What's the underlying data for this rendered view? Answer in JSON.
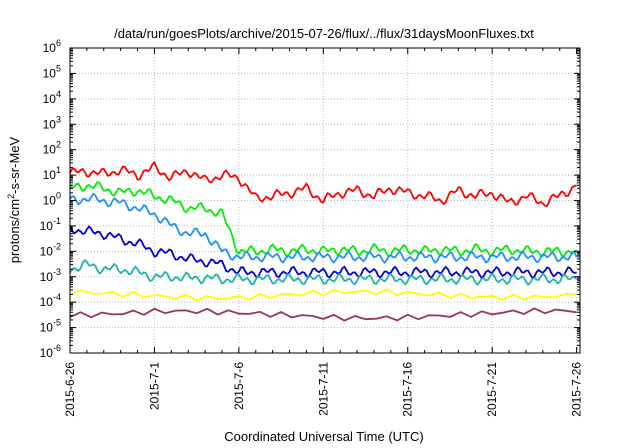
{
  "chart_data": {
    "type": "line",
    "title": "/data/run/goesPlots/archive/2015-07-26/flux/../flux/31daysMoonFluxes.txt",
    "xlabel": "Coordinated Universal Time (UTC)",
    "ylabel": {
      "main": "protons/cm",
      "sup": "2",
      "rest": "-s-sr-MeV"
    },
    "yscale": "log",
    "ylim_exp": [
      -6,
      6
    ],
    "y_ticks": [
      {
        "base": "10",
        "exp": "-6"
      },
      {
        "base": "10",
        "exp": "-5"
      },
      {
        "base": "10",
        "exp": "-4"
      },
      {
        "base": "10",
        "exp": "-3"
      },
      {
        "base": "10",
        "exp": "-2"
      },
      {
        "base": "10",
        "exp": "-1"
      },
      {
        "base": "10",
        "exp": "0"
      },
      {
        "base": "10",
        "exp": "1"
      },
      {
        "base": "10",
        "exp": "2"
      },
      {
        "base": "10",
        "exp": "3"
      },
      {
        "base": "10",
        "exp": "4"
      },
      {
        "base": "10",
        "exp": "5"
      },
      {
        "base": "10",
        "exp": "6"
      }
    ],
    "x_range_days": [
      0,
      30.2
    ],
    "x_ticks": [
      {
        "label": "2015-6-26",
        "day": 0
      },
      {
        "label": "2015-7-1",
        "day": 5
      },
      {
        "label": "2015-7-6",
        "day": 10
      },
      {
        "label": "2015-7-11",
        "day": 15
      },
      {
        "label": "2015-7-16",
        "day": 20
      },
      {
        "label": "2015-7-21",
        "day": 25
      },
      {
        "label": "2015-7-26",
        "day": 30
      }
    ],
    "grid": true,
    "series": [
      {
        "color": "#ff0000",
        "points": [
          [
            0,
            12
          ],
          [
            1,
            14
          ],
          [
            2,
            11
          ],
          [
            3,
            16
          ],
          [
            4,
            10
          ],
          [
            5,
            20
          ],
          [
            6,
            8
          ],
          [
            7,
            15
          ],
          [
            8,
            6
          ],
          [
            9,
            10
          ],
          [
            10,
            8
          ],
          [
            11,
            1.2
          ],
          [
            12,
            1.5
          ],
          [
            13,
            2.0
          ],
          [
            14,
            3.0
          ],
          [
            15,
            1.0
          ],
          [
            16,
            2.0
          ],
          [
            17,
            2.5
          ],
          [
            18,
            1.5
          ],
          [
            19,
            3.0
          ],
          [
            20,
            2.0
          ],
          [
            21,
            1.5
          ],
          [
            22,
            1.0
          ],
          [
            23,
            2.5
          ],
          [
            24,
            1.5
          ],
          [
            25,
            2.0
          ],
          [
            26,
            0.8
          ],
          [
            27,
            1.5
          ],
          [
            28,
            0.8
          ],
          [
            29,
            1.5
          ],
          [
            30,
            4.0
          ]
        ]
      },
      {
        "color": "#00ee00",
        "points": [
          [
            0,
            3.0
          ],
          [
            1,
            4.0
          ],
          [
            2,
            3.0
          ],
          [
            3,
            2.0
          ],
          [
            4,
            2.5
          ],
          [
            5,
            1.5
          ],
          [
            6,
            1.0
          ],
          [
            7,
            0.5
          ],
          [
            8,
            0.5
          ],
          [
            9,
            0.3
          ],
          [
            10,
            0.01
          ],
          [
            11,
            0.01
          ],
          [
            12,
            0.012
          ],
          [
            13,
            0.01
          ],
          [
            14,
            0.012
          ],
          [
            15,
            0.01
          ],
          [
            16,
            0.012
          ],
          [
            17,
            0.01
          ],
          [
            18,
            0.012
          ],
          [
            19,
            0.01
          ],
          [
            20,
            0.012
          ],
          [
            21,
            0.01
          ],
          [
            22,
            0.012
          ],
          [
            23,
            0.01
          ],
          [
            24,
            0.012
          ],
          [
            25,
            0.01
          ],
          [
            26,
            0.012
          ],
          [
            27,
            0.01
          ],
          [
            28,
            0.01
          ],
          [
            29,
            0.01
          ],
          [
            30,
            0.01
          ]
        ]
      },
      {
        "color": "#1e90ff",
        "points": [
          [
            0,
            1.0
          ],
          [
            1,
            1.2
          ],
          [
            2,
            1.0
          ],
          [
            3,
            0.8
          ],
          [
            4,
            0.5
          ],
          [
            5,
            0.3
          ],
          [
            6,
            0.1
          ],
          [
            7,
            0.05
          ],
          [
            8,
            0.05
          ],
          [
            9,
            0.01
          ],
          [
            10,
            0.006
          ],
          [
            11,
            0.006
          ],
          [
            12,
            0.006
          ],
          [
            13,
            0.006
          ],
          [
            14,
            0.006
          ],
          [
            15,
            0.006
          ],
          [
            16,
            0.006
          ],
          [
            17,
            0.006
          ],
          [
            18,
            0.006
          ],
          [
            19,
            0.006
          ],
          [
            20,
            0.006
          ],
          [
            21,
            0.006
          ],
          [
            22,
            0.006
          ],
          [
            23,
            0.006
          ],
          [
            24,
            0.006
          ],
          [
            25,
            0.006
          ],
          [
            26,
            0.006
          ],
          [
            27,
            0.006
          ],
          [
            28,
            0.006
          ],
          [
            29,
            0.006
          ],
          [
            30,
            0.006
          ]
        ]
      },
      {
        "color": "#0000dd",
        "points": [
          [
            0,
            0.08
          ],
          [
            1,
            0.06
          ],
          [
            2,
            0.05
          ],
          [
            3,
            0.03
          ],
          [
            4,
            0.02
          ],
          [
            5,
            0.01
          ],
          [
            6,
            0.008
          ],
          [
            7,
            0.005
          ],
          [
            8,
            0.004
          ],
          [
            9,
            0.003
          ],
          [
            10,
            0.0015
          ],
          [
            11,
            0.0015
          ],
          [
            12,
            0.0015
          ],
          [
            13,
            0.0015
          ],
          [
            14,
            0.0015
          ],
          [
            15,
            0.0015
          ],
          [
            16,
            0.0015
          ],
          [
            17,
            0.0015
          ],
          [
            18,
            0.0015
          ],
          [
            19,
            0.0015
          ],
          [
            20,
            0.0015
          ],
          [
            21,
            0.0015
          ],
          [
            22,
            0.0015
          ],
          [
            23,
            0.0015
          ],
          [
            24,
            0.0015
          ],
          [
            25,
            0.0015
          ],
          [
            26,
            0.0015
          ],
          [
            27,
            0.0015
          ],
          [
            28,
            0.0015
          ],
          [
            29,
            0.0015
          ],
          [
            30,
            0.0015
          ]
        ]
      },
      {
        "color": "#20b2aa",
        "points": [
          [
            0,
            0.002
          ],
          [
            1,
            0.003
          ],
          [
            2,
            0.002
          ],
          [
            3,
            0.002
          ],
          [
            4,
            0.0015
          ],
          [
            5,
            0.001
          ],
          [
            6,
            0.001
          ],
          [
            7,
            0.0009
          ],
          [
            8,
            0.0009
          ],
          [
            9,
            0.0008
          ],
          [
            10,
            0.0008
          ],
          [
            11,
            0.0008
          ],
          [
            12,
            0.0008
          ],
          [
            13,
            0.0008
          ],
          [
            14,
            0.0008
          ],
          [
            15,
            0.0008
          ],
          [
            16,
            0.0008
          ],
          [
            17,
            0.0008
          ],
          [
            18,
            0.0008
          ],
          [
            19,
            0.0008
          ],
          [
            20,
            0.0008
          ],
          [
            21,
            0.0008
          ],
          [
            22,
            0.0008
          ],
          [
            23,
            0.0008
          ],
          [
            24,
            0.0008
          ],
          [
            25,
            0.0008
          ],
          [
            26,
            0.0008
          ],
          [
            27,
            0.0008
          ],
          [
            28,
            0.0008
          ],
          [
            29,
            0.0008
          ],
          [
            30,
            0.0008
          ]
        ]
      },
      {
        "color": "#ffff00",
        "points": [
          [
            0,
            0.0002
          ],
          [
            5,
            0.0002
          ],
          [
            10,
            0.00018
          ],
          [
            15,
            0.0002
          ],
          [
            20,
            0.0002
          ],
          [
            25,
            0.0002
          ],
          [
            30,
            0.0002
          ]
        ]
      },
      {
        "color": "#993366",
        "points": [
          [
            0,
            4e-05
          ],
          [
            5,
            4e-05
          ],
          [
            10,
            3e-05
          ],
          [
            15,
            3e-05
          ],
          [
            20,
            3e-05
          ],
          [
            25,
            3e-05
          ],
          [
            30,
            4e-05
          ]
        ]
      }
    ]
  }
}
